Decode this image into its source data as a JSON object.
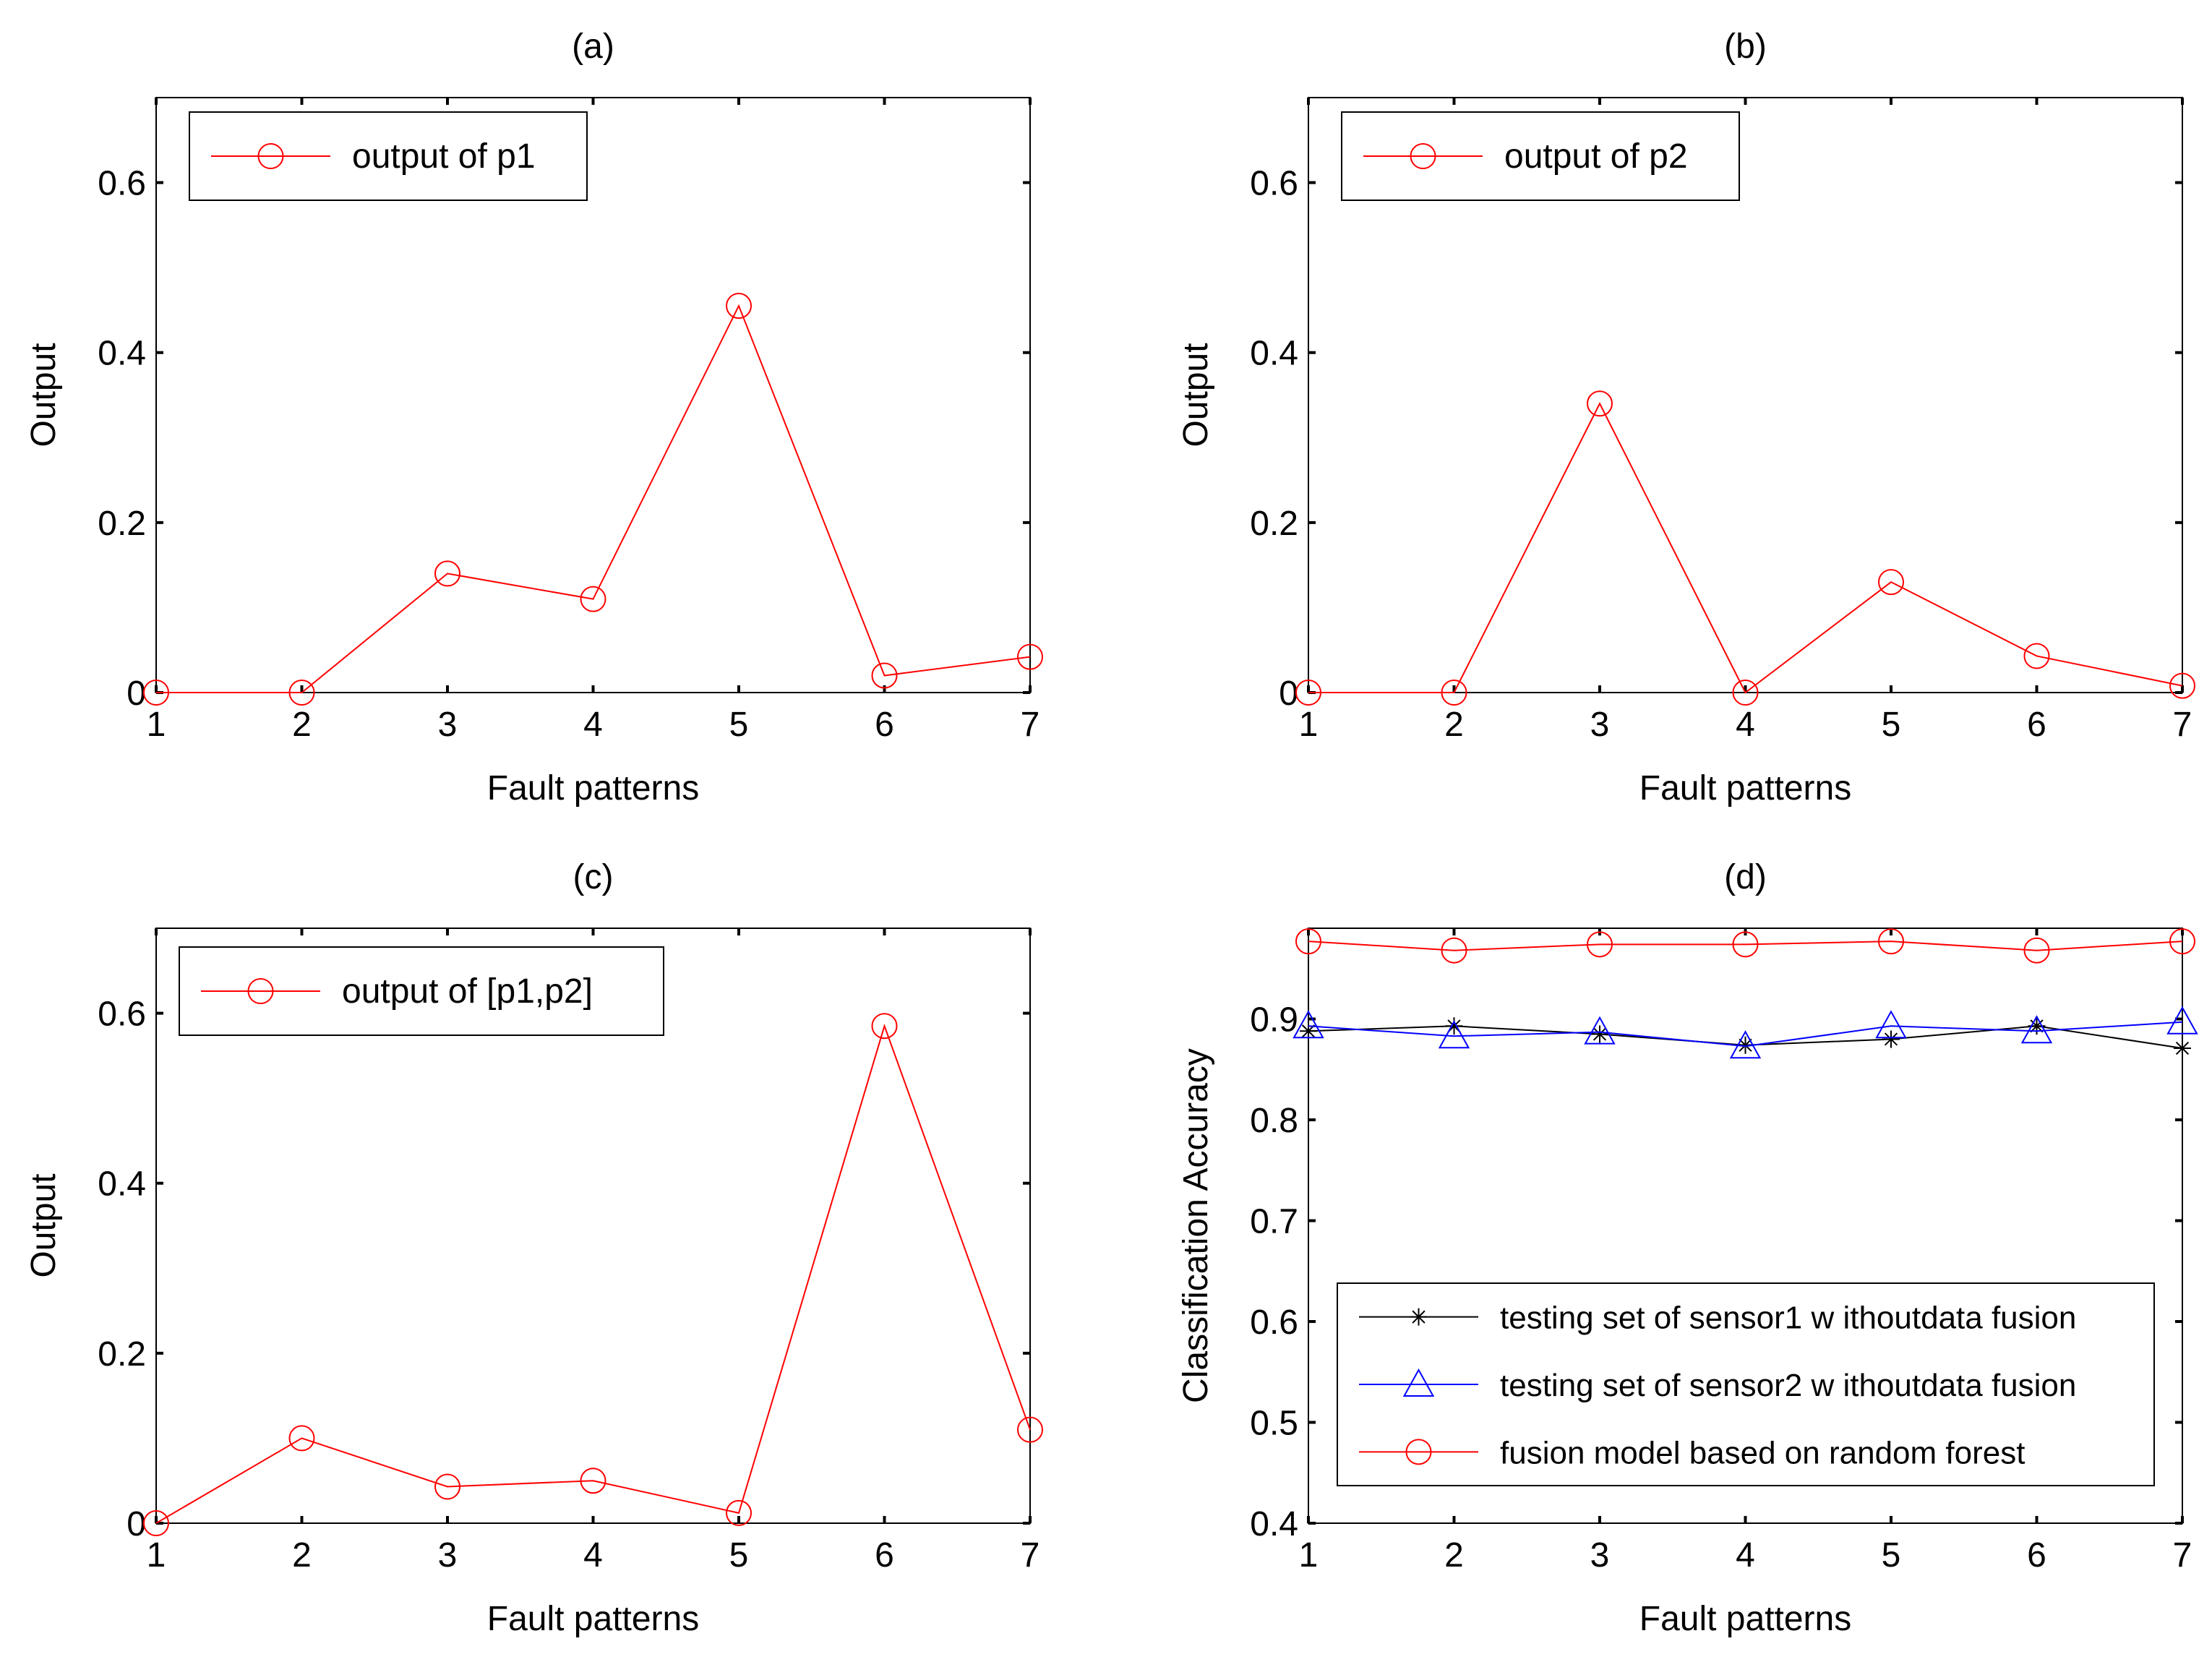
{
  "figure": {
    "line_color": "#ff0000",
    "axis_color": "#000000"
  },
  "chart_data": [
    {
      "panel": "a",
      "type": "line",
      "title": "(a)",
      "xlabel": "Fault patterns",
      "ylabel": "Output",
      "xlim": [
        1,
        7
      ],
      "ylim": [
        0,
        0.7
      ],
      "xticks": [
        1,
        2,
        3,
        4,
        5,
        6,
        7
      ],
      "yticks": [
        0,
        0.2,
        0.4,
        0.6
      ],
      "ytick_labels": [
        "0",
        "0.2",
        "0.4",
        "0.6"
      ],
      "legend_position": "top-left",
      "series": [
        {
          "name": "output of p1",
          "color": "#ff0000",
          "marker": "circle",
          "x": [
            1,
            2,
            3,
            4,
            5,
            6,
            7
          ],
          "values": [
            0,
            0,
            0.14,
            0.11,
            0.455,
            0.02,
            0.042
          ]
        }
      ]
    },
    {
      "panel": "b",
      "type": "line",
      "title": "(b)",
      "xlabel": "Fault patterns",
      "ylabel": "Output",
      "xlim": [
        1,
        7
      ],
      "ylim": [
        0,
        0.7
      ],
      "xticks": [
        1,
        2,
        3,
        4,
        5,
        6,
        7
      ],
      "yticks": [
        0,
        0.2,
        0.4,
        0.6
      ],
      "ytick_labels": [
        "0",
        "0.2",
        "0.4",
        "0.6"
      ],
      "legend_position": "top-left",
      "series": [
        {
          "name": "output of p2",
          "color": "#ff0000",
          "marker": "circle",
          "x": [
            1,
            2,
            3,
            4,
            5,
            6,
            7
          ],
          "values": [
            0,
            0,
            0.34,
            0,
            0.13,
            0.043,
            0.008
          ]
        }
      ]
    },
    {
      "panel": "c",
      "type": "line",
      "title": "(c)",
      "xlabel": "Fault patterns",
      "ylabel": "Output",
      "xlim": [
        1,
        7
      ],
      "ylim": [
        0,
        0.7
      ],
      "xticks": [
        1,
        2,
        3,
        4,
        5,
        6,
        7
      ],
      "yticks": [
        0,
        0.2,
        0.4,
        0.6
      ],
      "ytick_labels": [
        "0",
        "0.2",
        "0.4",
        "0.6"
      ],
      "legend_position": "top-left",
      "series": [
        {
          "name": "output of [p1,p2]",
          "color": "#ff0000",
          "marker": "circle",
          "x": [
            1,
            2,
            3,
            4,
            5,
            6,
            7
          ],
          "values": [
            0,
            0.1,
            0.043,
            0.05,
            0.012,
            0.585,
            0.11
          ]
        }
      ]
    },
    {
      "panel": "d",
      "type": "line",
      "title": "(d)",
      "xlabel": "Fault patterns",
      "ylabel": "Classification Accuracy",
      "xlim": [
        1,
        7
      ],
      "ylim": [
        0.4,
        0.99
      ],
      "xticks": [
        1,
        2,
        3,
        4,
        5,
        6,
        7
      ],
      "yticks": [
        0.4,
        0.5,
        0.6,
        0.7,
        0.8,
        0.9
      ],
      "ytick_labels": [
        "0.4",
        "0.5",
        "0.6",
        "0.7",
        "0.8",
        "0.9"
      ],
      "legend_position": "bottom-right",
      "series": [
        {
          "name": "testing set of sensor1 w ithoutdata fusion",
          "color": "#000000",
          "marker": "star",
          "x": [
            1,
            2,
            3,
            4,
            5,
            6,
            7
          ],
          "values": [
            0.888,
            0.893,
            0.885,
            0.874,
            0.88,
            0.893,
            0.871
          ]
        },
        {
          "name": "testing set of sensor2 w ithoutdata fusion",
          "color": "#0000ff",
          "marker": "triangle",
          "x": [
            1,
            2,
            3,
            4,
            5,
            6,
            7
          ],
          "values": [
            0.893,
            0.883,
            0.887,
            0.873,
            0.893,
            0.888,
            0.897
          ]
        },
        {
          "name": "fusion model based on random forest",
          "color": "#ff0000",
          "marker": "circle",
          "x": [
            1,
            2,
            3,
            4,
            5,
            6,
            7
          ],
          "values": [
            0.977,
            0.968,
            0.974,
            0.974,
            0.977,
            0.968,
            0.977
          ]
        }
      ]
    }
  ]
}
